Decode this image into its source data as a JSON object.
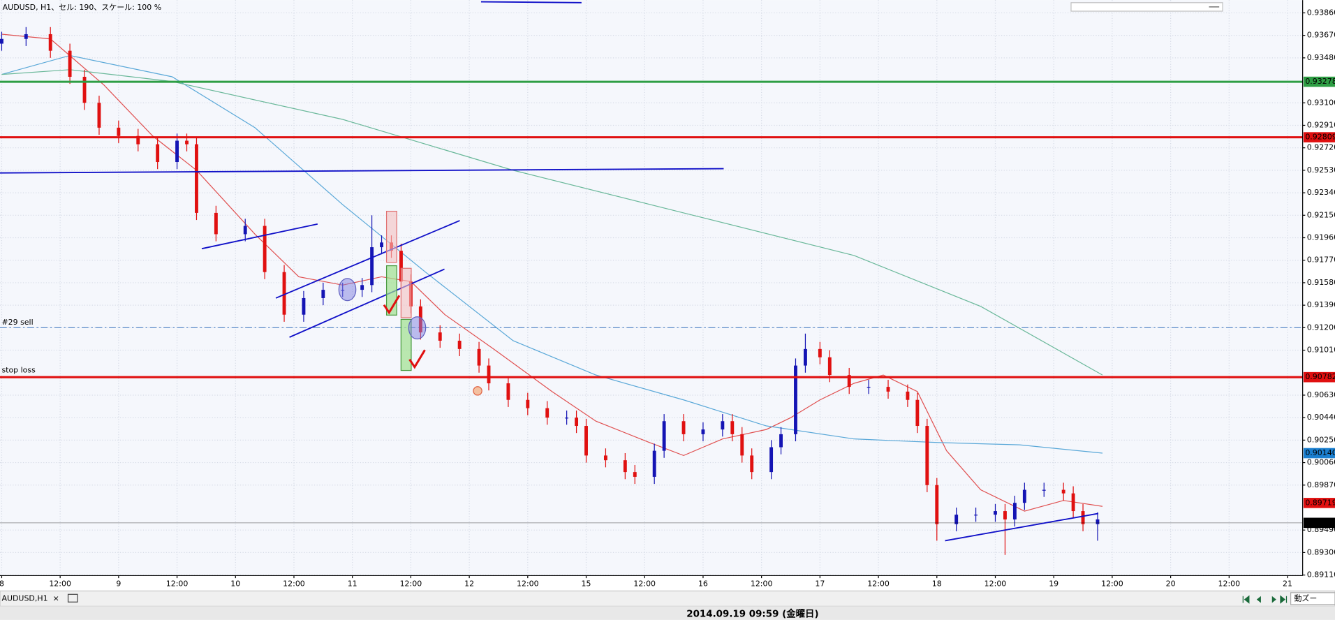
{
  "chart_data": {
    "type": "candlestick",
    "title": "AUDUSD, H1、セル: 190、スケール: 100 %",
    "tab": "AUDUSD,H1",
    "status": "2014.09.19 09:59 (金曜日)",
    "zoom_button": "動ズー",
    "up_color": "#1414b4",
    "down_color": "#e01010",
    "grid": true,
    "xlim": [
      -0.35,
      267.1
    ],
    "ylim": [
      0.89105,
      0.93968
    ],
    "xticks": [
      {
        "value": 0,
        "label": "8"
      },
      {
        "value": 12,
        "label": "12:00"
      },
      {
        "value": 24,
        "label": "9"
      },
      {
        "value": 36,
        "label": "12:00"
      },
      {
        "value": 48,
        "label": "10"
      },
      {
        "value": 60,
        "label": "12:00"
      },
      {
        "value": 72,
        "label": "11"
      },
      {
        "value": 84,
        "label": "12:00"
      },
      {
        "value": 96,
        "label": "12"
      },
      {
        "value": 108,
        "label": "12:00"
      },
      {
        "value": 120,
        "label": "15"
      },
      {
        "value": 132,
        "label": "12:00"
      },
      {
        "value": 144,
        "label": "16"
      },
      {
        "value": 156,
        "label": "12:00"
      },
      {
        "value": 168,
        "label": "17"
      },
      {
        "value": 180,
        "label": "12:00"
      },
      {
        "value": 192,
        "label": "18"
      },
      {
        "value": 204,
        "label": "12:00"
      },
      {
        "value": 216,
        "label": "19"
      },
      {
        "value": 228,
        "label": "12:00"
      },
      {
        "value": 240,
        "label": "20"
      },
      {
        "value": 252,
        "label": "12:00"
      },
      {
        "value": 264,
        "label": "21"
      }
    ],
    "yticks": [
      {
        "value": 0.9386,
        "label": "0.93860"
      },
      {
        "value": 0.9367,
        "label": "0.93670"
      },
      {
        "value": 0.9348,
        "label": "0.93480"
      },
      {
        "value": 0.931,
        "label": "0.93100"
      },
      {
        "value": 0.9291,
        "label": "0.92910"
      },
      {
        "value": 0.9272,
        "label": "0.92720"
      },
      {
        "value": 0.9253,
        "label": "0.92530"
      },
      {
        "value": 0.9234,
        "label": "0.92340"
      },
      {
        "value": 0.9215,
        "label": "0.92150"
      },
      {
        "value": 0.9196,
        "label": "0.91960"
      },
      {
        "value": 0.9177,
        "label": "0.91770"
      },
      {
        "value": 0.9158,
        "label": "0.91580"
      },
      {
        "value": 0.9139,
        "label": "0.91390"
      },
      {
        "value": 0.912,
        "label": "0.91200"
      },
      {
        "value": 0.9101,
        "label": "0.91010"
      },
      {
        "value": 0.9063,
        "label": "0.90630"
      },
      {
        "value": 0.9044,
        "label": "0.90440"
      },
      {
        "value": 0.9025,
        "label": "0.90250"
      },
      {
        "value": 0.9006,
        "label": "0.90060"
      },
      {
        "value": 0.8987,
        "label": "0.89870"
      },
      {
        "value": 0.8949,
        "label": "0.89490"
      },
      {
        "value": 0.893,
        "label": "0.89300"
      },
      {
        "value": 0.8911,
        "label": "0.89110"
      }
    ],
    "levels": [
      {
        "value": 0.93278,
        "color": "#2e9e44",
        "line": true
      },
      {
        "value": 0.92809,
        "color": "#e01010",
        "line": true
      },
      {
        "value": 0.90782,
        "color": "#e01010",
        "line": true,
        "annotation": "stop loss"
      },
      {
        "value": 0.9014,
        "label": "0.90140",
        "color": "#1a7fd0",
        "line": false
      },
      {
        "value": 0.89719,
        "color": "#e01010",
        "line": false
      },
      {
        "value": 0.89551,
        "color": "#000000",
        "line": true
      }
    ],
    "sell_level": {
      "value": 0.912,
      "annotation": "#29 sell"
    },
    "candles": {
      "x": [
        0,
        5,
        10,
        14,
        17,
        20,
        24,
        28,
        32,
        36,
        38,
        40,
        44,
        50,
        54,
        58,
        62,
        66,
        70,
        74,
        76,
        78,
        80,
        82,
        84,
        86,
        90,
        94,
        98,
        100,
        104,
        108,
        112,
        116,
        118,
        120,
        124,
        128,
        130,
        134,
        136,
        140,
        144,
        148,
        150,
        152,
        154,
        158,
        160,
        163,
        165,
        168,
        170,
        174,
        178,
        182,
        186,
        188,
        190,
        192,
        196,
        200,
        204,
        206,
        208,
        210,
        214,
        218,
        220,
        222,
        225
      ],
      "open": [
        0.936,
        0.9364,
        0.9368,
        0.9354,
        0.9332,
        0.931,
        0.9289,
        0.9282,
        0.9275,
        0.926,
        0.9278,
        0.9275,
        0.9217,
        0.9199,
        0.9206,
        0.9167,
        0.9131,
        0.9145,
        0.9152,
        0.9152,
        0.9156,
        0.9188,
        0.9192,
        0.9185,
        0.9159,
        0.9138,
        0.9116,
        0.9109,
        0.9102,
        0.9088,
        0.9073,
        0.9059,
        0.9052,
        0.9044,
        0.9044,
        0.9037,
        0.9012,
        0.9008,
        0.8998,
        0.8994,
        0.9016,
        0.9041,
        0.903,
        0.9034,
        0.9041,
        0.903,
        0.9012,
        0.8998,
        0.9019,
        0.903,
        0.9088,
        0.9102,
        0.9095,
        0.908,
        0.907,
        0.907,
        0.9066,
        0.9059,
        0.9037,
        0.8987,
        0.8954,
        0.8962,
        0.8962,
        0.8965,
        0.8958,
        0.8972,
        0.8983,
        0.8983,
        0.898,
        0.8965,
        0.8954
      ],
      "high": [
        0.937,
        0.9374,
        0.9374,
        0.936,
        0.9338,
        0.9316,
        0.9295,
        0.9288,
        0.9281,
        0.9284,
        0.9284,
        0.9281,
        0.9223,
        0.9212,
        0.9212,
        0.9173,
        0.9151,
        0.9158,
        0.9158,
        0.9162,
        0.9215,
        0.9198,
        0.9198,
        0.9191,
        0.9165,
        0.9144,
        0.9122,
        0.9115,
        0.9108,
        0.9094,
        0.9079,
        0.9065,
        0.9058,
        0.905,
        0.905,
        0.9043,
        0.9018,
        0.9014,
        0.9004,
        0.9022,
        0.9047,
        0.9047,
        0.904,
        0.9047,
        0.9047,
        0.9036,
        0.9018,
        0.9025,
        0.9036,
        0.9094,
        0.9115,
        0.9108,
        0.9101,
        0.9086,
        0.9076,
        0.9076,
        0.9072,
        0.9065,
        0.9043,
        0.8993,
        0.8968,
        0.8968,
        0.8971,
        0.8971,
        0.8978,
        0.8989,
        0.8989,
        0.8989,
        0.8986,
        0.8971,
        0.8964
      ],
      "low": [
        0.9354,
        0.9358,
        0.9348,
        0.9326,
        0.9304,
        0.9283,
        0.9276,
        0.9269,
        0.9254,
        0.9254,
        0.9269,
        0.9211,
        0.9193,
        0.9193,
        0.9161,
        0.9125,
        0.9125,
        0.9139,
        0.9146,
        0.9146,
        0.915,
        0.9182,
        0.9179,
        0.9153,
        0.9132,
        0.911,
        0.9103,
        0.9096,
        0.9082,
        0.9067,
        0.9053,
        0.9046,
        0.9038,
        0.9038,
        0.9031,
        0.9006,
        0.9002,
        0.8992,
        0.8988,
        0.8988,
        0.901,
        0.9024,
        0.9024,
        0.9028,
        0.9024,
        0.9006,
        0.8992,
        0.8992,
        0.9013,
        0.9024,
        0.9082,
        0.9089,
        0.9074,
        0.9064,
        0.9064,
        0.906,
        0.9053,
        0.9031,
        0.8981,
        0.894,
        0.8948,
        0.8956,
        0.8956,
        0.8928,
        0.8952,
        0.8966,
        0.8977,
        0.8974,
        0.8959,
        0.8948,
        0.894
      ],
      "close": [
        0.9364,
        0.9368,
        0.9354,
        0.9332,
        0.931,
        0.9289,
        0.9282,
        0.9275,
        0.926,
        0.9278,
        0.9275,
        0.9217,
        0.9199,
        0.9206,
        0.9167,
        0.9131,
        0.9145,
        0.9152,
        0.9152,
        0.9156,
        0.9188,
        0.9192,
        0.9185,
        0.9159,
        0.9138,
        0.9116,
        0.9109,
        0.9102,
        0.9088,
        0.9073,
        0.9059,
        0.9052,
        0.9044,
        0.9044,
        0.9037,
        0.9012,
        0.9008,
        0.8998,
        0.8994,
        0.9016,
        0.9041,
        0.903,
        0.9034,
        0.9041,
        0.903,
        0.9012,
        0.8998,
        0.9019,
        0.903,
        0.9088,
        0.9102,
        0.9095,
        0.908,
        0.907,
        0.907,
        0.9066,
        0.9059,
        0.9037,
        0.8987,
        0.8954,
        0.8962,
        0.8962,
        0.8965,
        0.8958,
        0.8972,
        0.8983,
        0.8983,
        0.898,
        0.8965,
        0.8954,
        0.8958
      ]
    },
    "lines": [
      {
        "color": "#e05050",
        "x": [
          0,
          10,
          21,
          31,
          40,
          52,
          61,
          70,
          78,
          84,
          91,
          101,
          113,
          122,
          133,
          140,
          148,
          157,
          162,
          168,
          175,
          181,
          188,
          194,
          201,
          210,
          218,
          226
        ],
        "values": [
          0.9368,
          0.9364,
          0.9325,
          0.9282,
          0.9253,
          0.9199,
          0.9163,
          0.9156,
          0.9163,
          0.9159,
          0.9131,
          0.9102,
          0.9066,
          0.9041,
          0.9023,
          0.9012,
          0.9026,
          0.9034,
          0.9044,
          0.9059,
          0.9073,
          0.908,
          0.9066,
          0.9016,
          0.8983,
          0.8965,
          0.8974,
          0.8969
        ]
      },
      {
        "color": "#5aa8d8",
        "x": [
          0,
          14,
          35,
          52,
          70,
          87,
          105,
          122,
          140,
          157,
          175,
          192,
          209,
          226
        ],
        "values": [
          0.9334,
          0.935,
          0.9332,
          0.9289,
          0.9224,
          0.9167,
          0.9109,
          0.908,
          0.9059,
          0.9037,
          0.9026,
          0.9023,
          0.9021,
          0.9014
        ]
      },
      {
        "color": "#6ab89a",
        "x": [
          0,
          14,
          35,
          70,
          105,
          140,
          175,
          201,
          226
        ],
        "values": [
          0.9334,
          0.9338,
          0.9328,
          0.9296,
          0.9253,
          0.9217,
          0.9181,
          0.9138,
          0.908
        ]
      }
    ]
  }
}
